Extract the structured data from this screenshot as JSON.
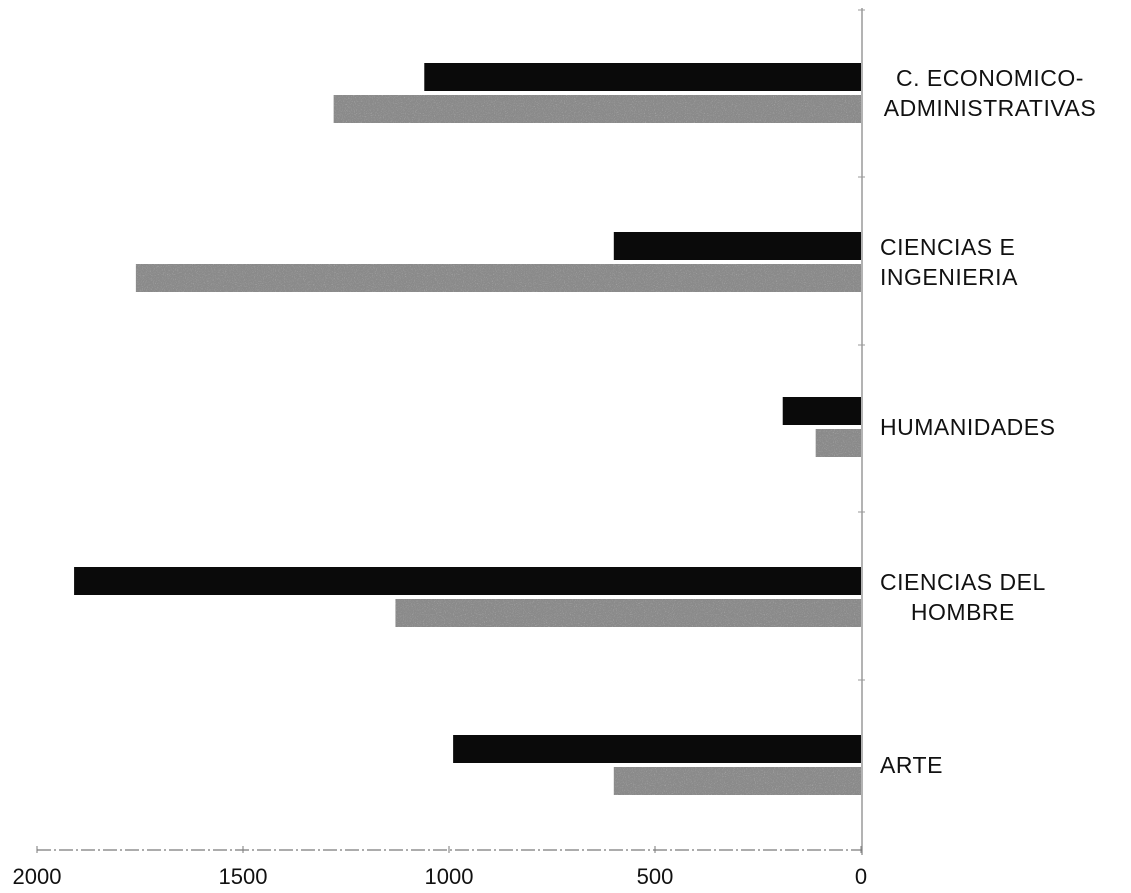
{
  "chart_data": {
    "type": "bar",
    "orientation": "horizontal",
    "x_direction": "reversed",
    "categories": [
      [
        "C. ECONOMICO-",
        "ADMINISTRATIVAS"
      ],
      [
        "CIENCIAS E",
        "INGENIERIA"
      ],
      [
        "HUMANIDADES"
      ],
      [
        "CIENCIAS DEL",
        "HOMBRE"
      ],
      [
        "ARTE"
      ]
    ],
    "series": [
      {
        "color": "#0a0a0a",
        "values": [
          1060,
          600,
          190,
          1910,
          990
        ]
      },
      {
        "color": "#8a8a8a",
        "values": [
          1280,
          1760,
          110,
          1130,
          600
        ]
      }
    ],
    "xlim": [
      0,
      2000
    ],
    "xticks": [
      {
        "value": 2000,
        "label": "2000"
      },
      {
        "value": 1500,
        "label": "1500"
      },
      {
        "value": 1000,
        "label": "1000"
      },
      {
        "value": 500,
        "label": "500"
      },
      {
        "value": 0,
        "label": "0"
      }
    ],
    "title": "",
    "xlabel": "",
    "ylabel": "",
    "legend": "none",
    "grid": false
  }
}
